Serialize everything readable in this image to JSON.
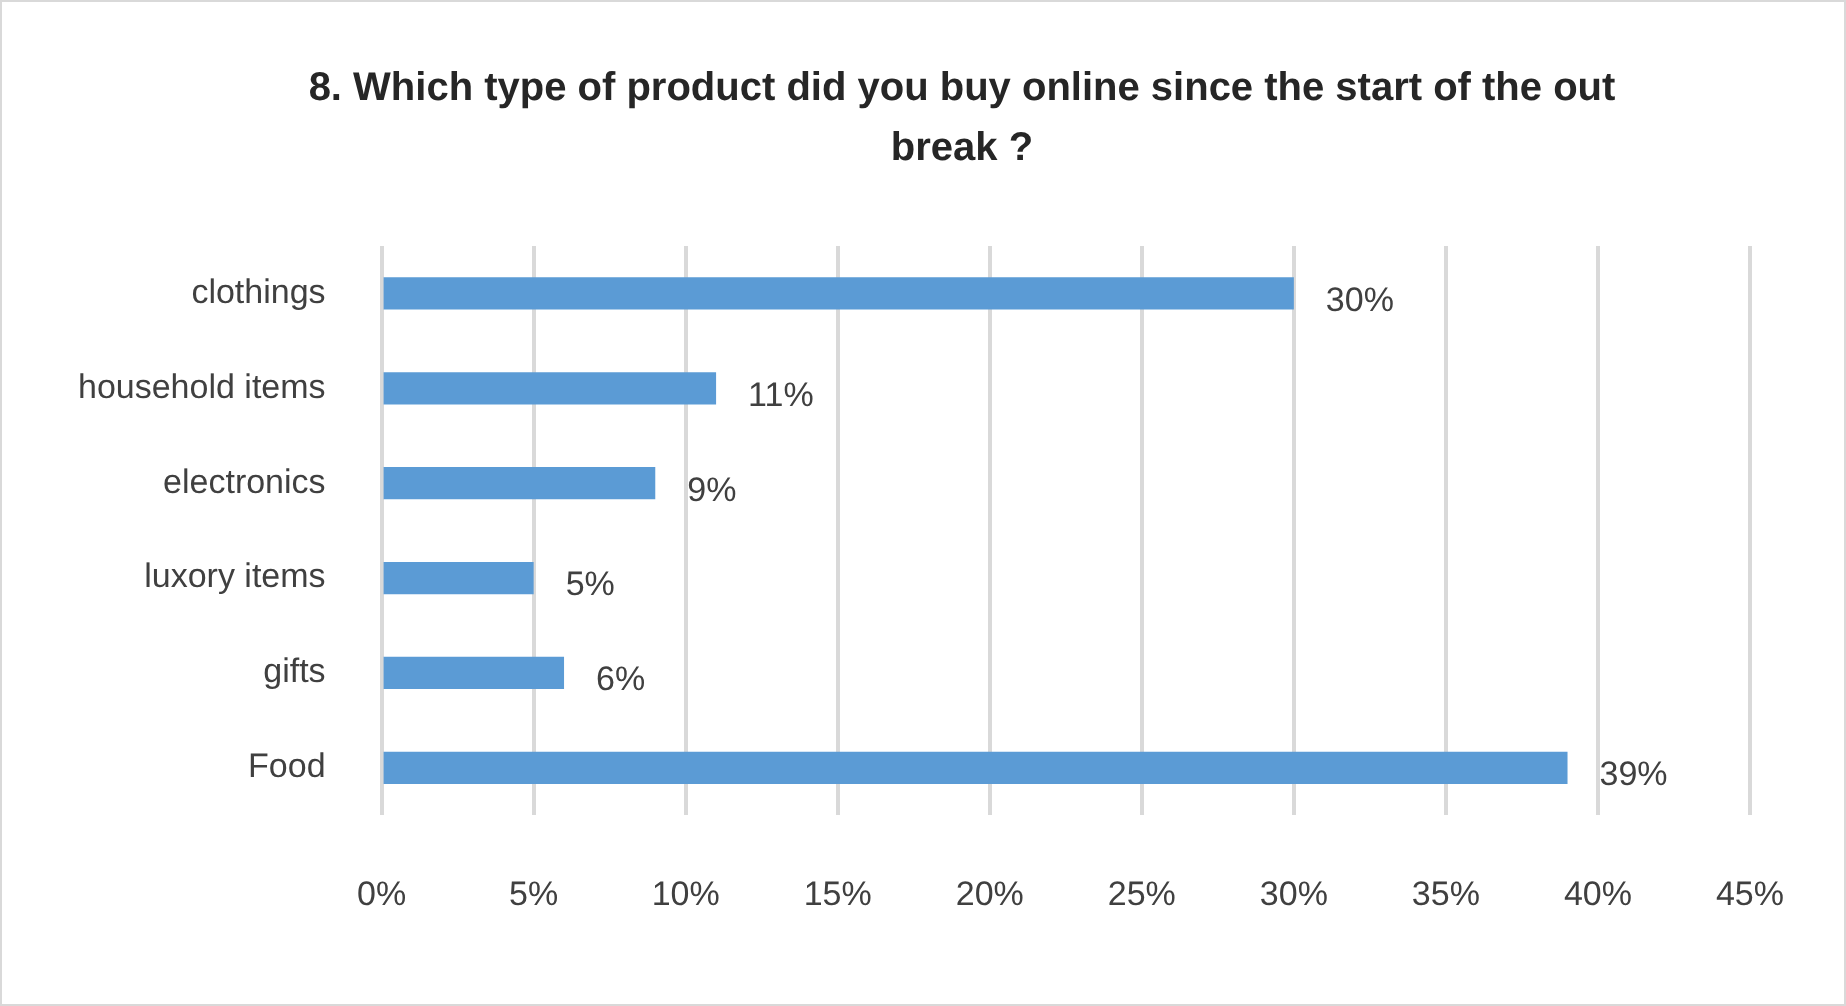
{
  "chart_data": {
    "type": "bar",
    "orientation": "horizontal",
    "title": "8. Which type of product did you buy online since the start of the out break ?",
    "categories": [
      "clothings",
      "household items",
      "electronics",
      "luxory items",
      "gifts",
      "Food"
    ],
    "values": [
      30,
      11,
      9,
      5,
      6,
      39
    ],
    "value_labels": [
      "30%",
      "11%",
      "9%",
      "5%",
      "6%",
      "39%"
    ],
    "color": "#5b9bd5",
    "xlim": [
      0,
      45
    ],
    "xticks": [
      {
        "value": 0,
        "label": "0%"
      },
      {
        "value": 5,
        "label": "5%"
      },
      {
        "value": 10,
        "label": "10%"
      },
      {
        "value": 15,
        "label": "15%"
      },
      {
        "value": 20,
        "label": "20%"
      },
      {
        "value": 25,
        "label": "25%"
      },
      {
        "value": 30,
        "label": "30%"
      },
      {
        "value": 35,
        "label": "35%"
      },
      {
        "value": 40,
        "label": "40%"
      },
      {
        "value": 45,
        "label": "45%"
      }
    ],
    "grid": "x",
    "legend": false
  }
}
